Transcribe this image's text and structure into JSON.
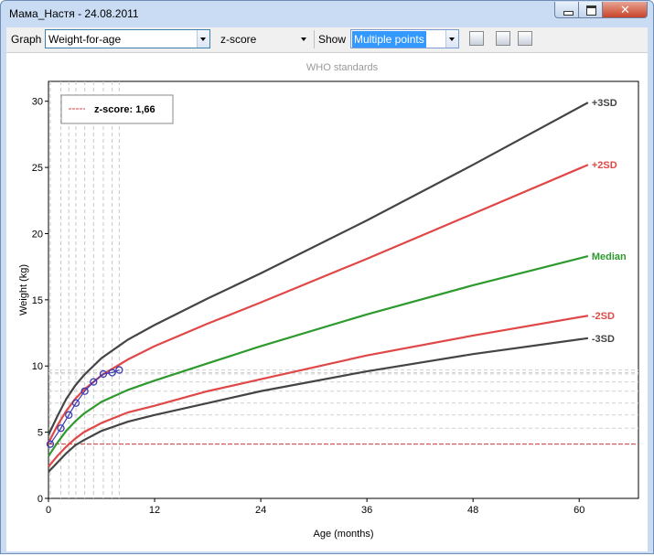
{
  "window": {
    "title": "Мама_Настя - 24.08.2011"
  },
  "toolbar": {
    "graph_label": "Graph",
    "graph_value": "Weight-for-age",
    "mode_value": "z-score",
    "show_label": "Show",
    "show_value": "Multiple points"
  },
  "chart_data": {
    "type": "line",
    "title": "WHO standards",
    "x_label": "Age (months)",
    "y_label": "Weight (kg)",
    "x": [
      0,
      1,
      2,
      3,
      4,
      6,
      9,
      12,
      18,
      24,
      36,
      48,
      61
    ],
    "series": [
      {
        "name": "+3SD",
        "color": "#444444",
        "values": [
          4.8,
          6.2,
          7.5,
          8.5,
          9.3,
          10.6,
          12.0,
          13.1,
          15.1,
          17.0,
          21.0,
          25.2,
          29.9
        ]
      },
      {
        "name": "+2SD",
        "color": "#e04848",
        "values": [
          4.2,
          5.5,
          6.6,
          7.5,
          8.2,
          9.3,
          10.5,
          11.5,
          13.2,
          14.8,
          18.1,
          21.5,
          25.2
        ]
      },
      {
        "name": "Median",
        "color": "#2e9a2e",
        "values": [
          3.2,
          4.2,
          5.1,
          5.8,
          6.4,
          7.3,
          8.2,
          8.9,
          10.2,
          11.5,
          13.9,
          16.1,
          18.3
        ]
      },
      {
        "name": "-2SD",
        "color": "#e04848",
        "values": [
          2.4,
          3.2,
          3.9,
          4.5,
          5.0,
          5.7,
          6.5,
          7.0,
          8.1,
          9.0,
          10.8,
          12.3,
          13.8
        ]
      },
      {
        "name": "-3SD",
        "color": "#444444",
        "values": [
          2.0,
          2.7,
          3.4,
          4.0,
          4.4,
          5.1,
          5.8,
          6.3,
          7.2,
          8.1,
          9.6,
          10.9,
          12.1
        ]
      }
    ],
    "points": {
      "color": "#3b3bb0",
      "x": [
        0.2,
        1.4,
        2.3,
        3.1,
        4.1,
        5.1,
        6.2,
        7.2,
        8.0
      ],
      "y": [
        4.1,
        5.3,
        6.3,
        7.2,
        8.1,
        8.8,
        9.4,
        9.5,
        9.7
      ]
    },
    "reference_line": {
      "value": 4.1,
      "color": "#d04040"
    },
    "legend": {
      "label": "z-score: 1,66",
      "color": "#d04040"
    },
    "xlim": [
      0,
      66.7
    ],
    "ylim": [
      0,
      31.5
    ],
    "xticks": [
      0,
      12,
      24,
      36,
      48,
      60
    ],
    "yticks": [
      0,
      5,
      10,
      15,
      20,
      25,
      30
    ]
  }
}
